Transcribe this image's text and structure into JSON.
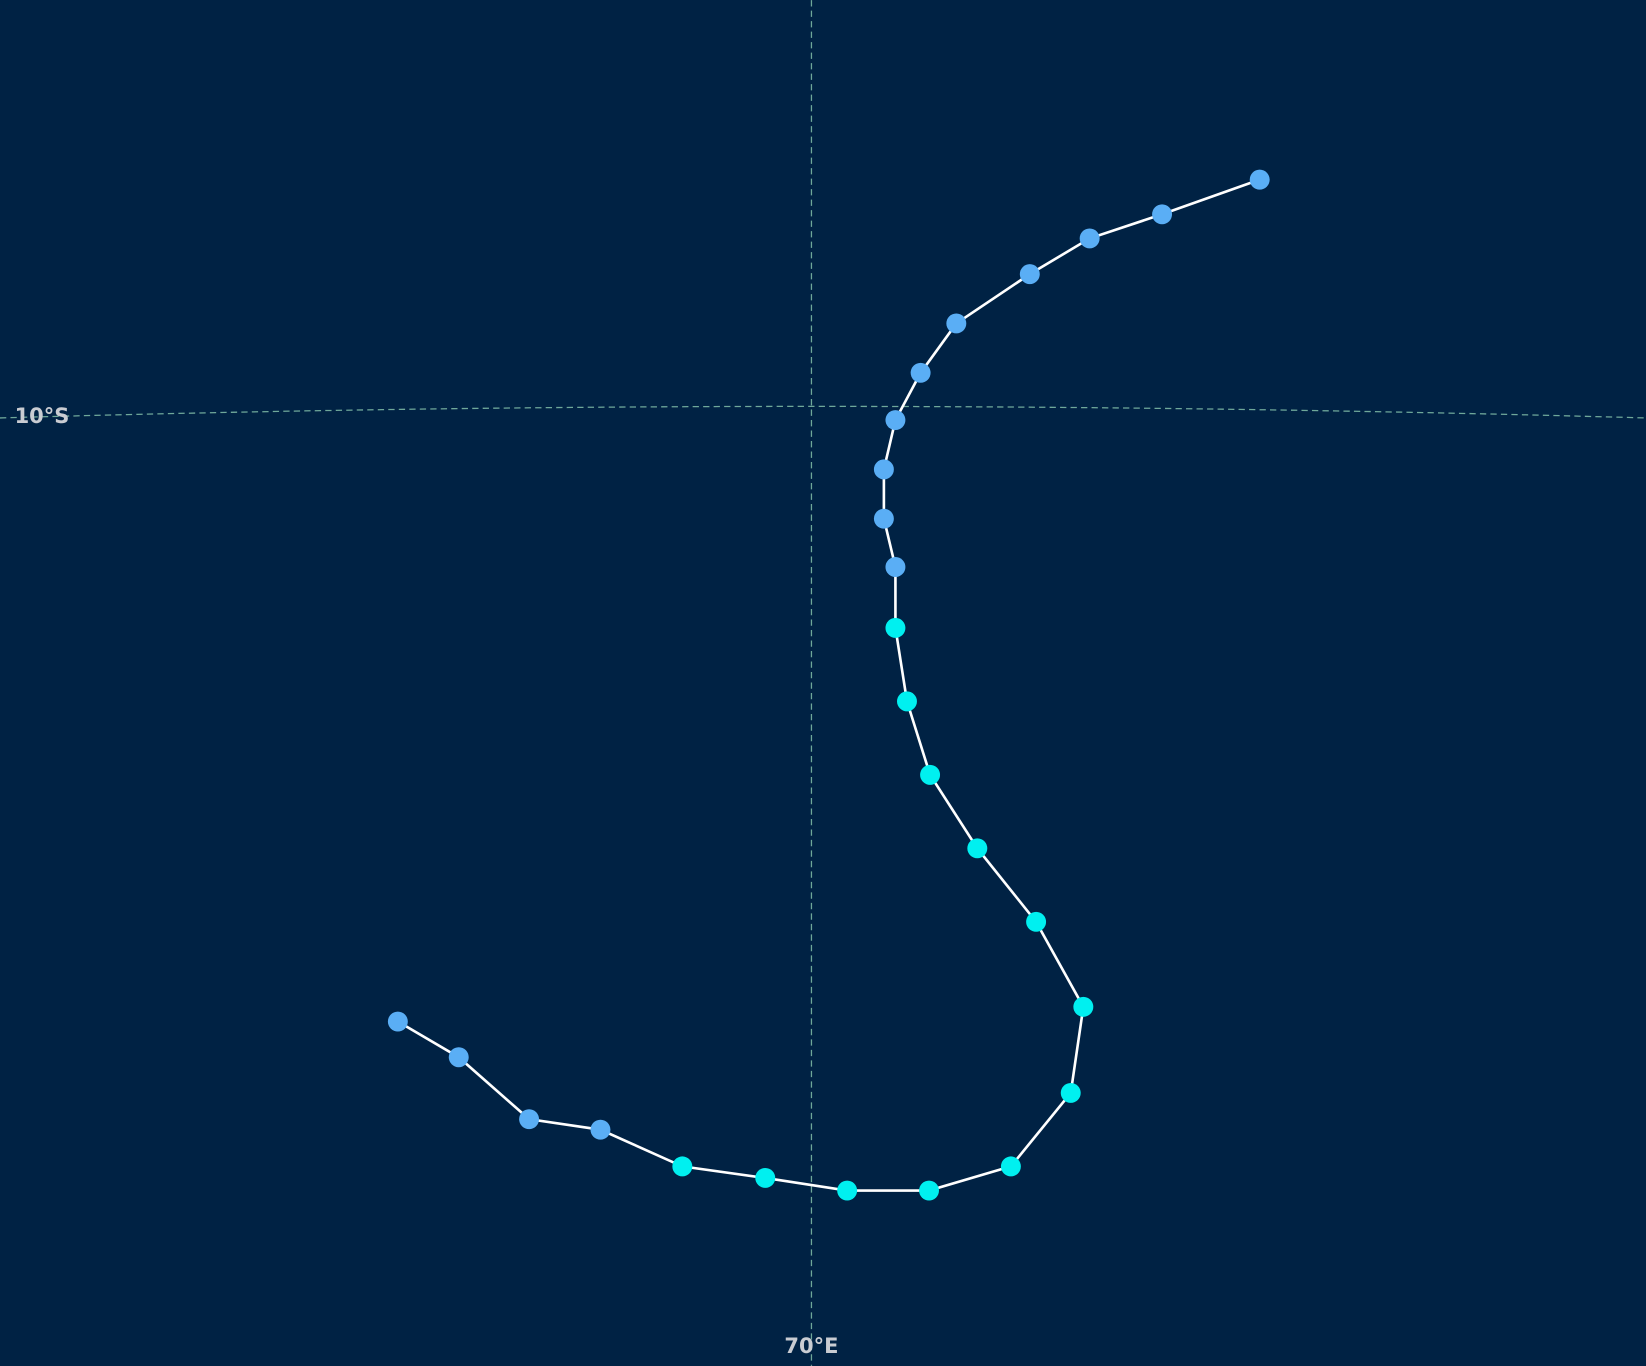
{
  "graticule": {
    "latitude_label": "10°S",
    "longitude_label": "70°E"
  }
}
